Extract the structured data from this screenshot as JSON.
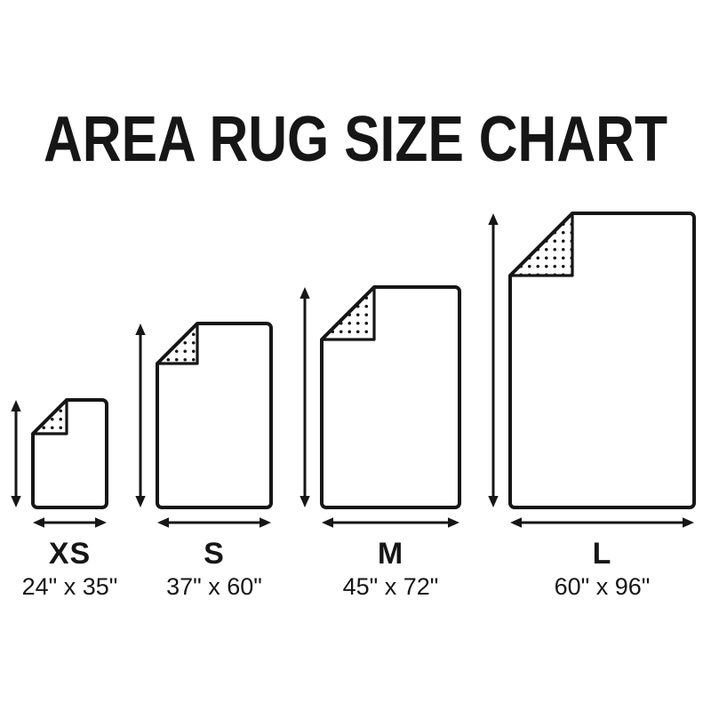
{
  "title": "AREA RUG SIZE CHART",
  "colors": {
    "background": "#ffffff",
    "ink": "#161616"
  },
  "sizes": [
    {
      "id": "xs",
      "label": "XS",
      "dimensions": "24\" x 35\"",
      "width_inches": 24,
      "height_inches": 35
    },
    {
      "id": "s",
      "label": "S",
      "dimensions": "37\" x 60\"",
      "width_inches": 37,
      "height_inches": 60
    },
    {
      "id": "m",
      "label": "M",
      "dimensions": "45\" x 72\"",
      "width_inches": 45,
      "height_inches": 72
    },
    {
      "id": "l",
      "label": "L",
      "dimensions": "60\" x 96\"",
      "width_inches": 60,
      "height_inches": 96
    }
  ]
}
